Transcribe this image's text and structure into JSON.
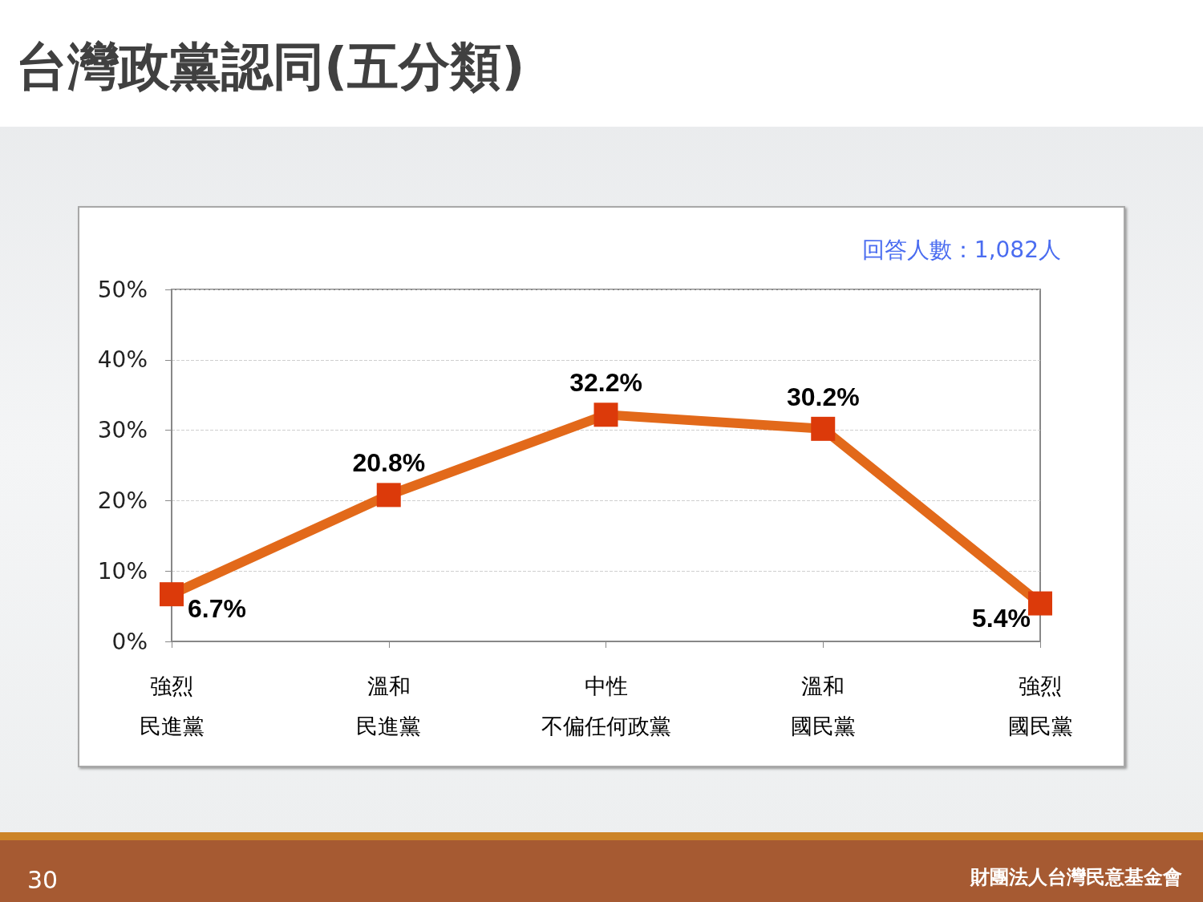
{
  "chart_data": {
    "type": "line",
    "title": "台灣政黨認同(五分類)",
    "categories": [
      "強烈民進黨",
      "溫和民進黨",
      "中性不偏任何政黨",
      "溫和國民黨",
      "強烈國民黨"
    ],
    "series": [
      {
        "color": "#e2691a",
        "colors": [
          "#dc3a0a",
          "#dc3a0a",
          "#dc3a0a",
          "#dc3a0a",
          "#dc3a0a"
        ],
        "values": [
          6.7,
          20.8,
          32.2,
          30.2,
          5.4
        ],
        "value_labels": [
          "6.7%",
          "20.8%",
          "32.2%",
          "30.2%",
          "5.4%"
        ]
      }
    ],
    "ylim": [
      0,
      50
    ],
    "yticks": [
      {
        "value": 0,
        "label": "0%"
      },
      {
        "value": 10,
        "label": "10%"
      },
      {
        "value": 20,
        "label": "20%"
      },
      {
        "value": 30,
        "label": "30%"
      },
      {
        "value": 40,
        "label": "40%"
      },
      {
        "value": 50,
        "label": "50%"
      }
    ],
    "grid": "y",
    "marker": "square",
    "line_style": "solid",
    "annotations": [
      "回答人數：1,082人",
      "30",
      "財團法人台灣民意基金會"
    ]
  }
}
